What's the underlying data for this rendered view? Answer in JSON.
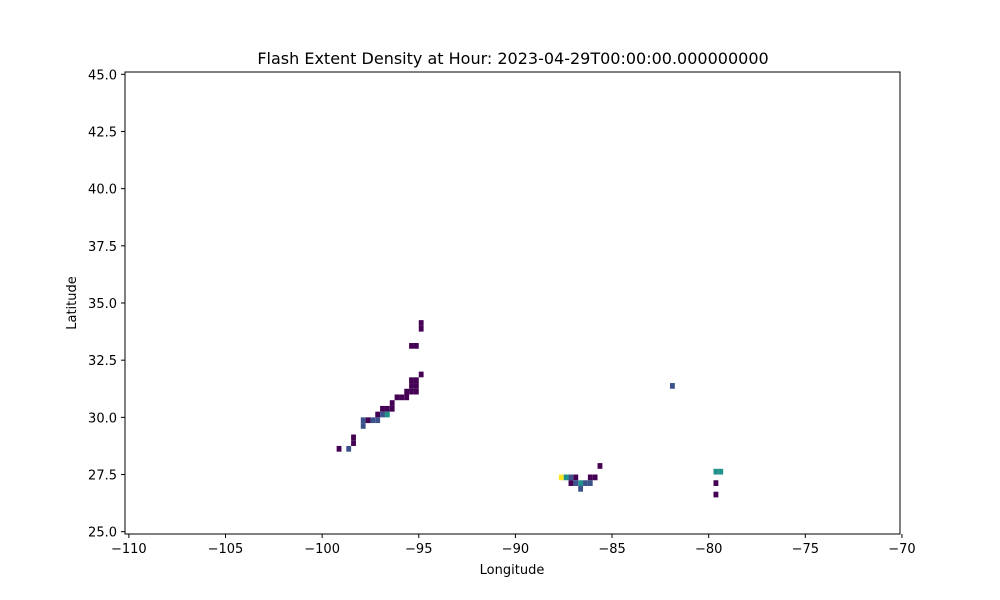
{
  "chart_data": {
    "type": "heatmap",
    "title": "Flash Extent Density at Hour: 2023-04-29T00:00:00.000000000",
    "xlabel": "Longitude",
    "ylabel": "Latitude",
    "xlim": [
      -110.2,
      -70.1
    ],
    "ylim": [
      24.9,
      45.1
    ],
    "xticks": [
      -110,
      -105,
      -100,
      -95,
      -90,
      -85,
      -80,
      -75,
      -70
    ],
    "yticks": [
      25.0,
      27.5,
      30.0,
      32.5,
      35.0,
      37.5,
      40.0,
      42.5,
      45.0
    ],
    "xtick_labels": [
      "−110",
      "−105",
      "−100",
      "−95",
      "−90",
      "−85",
      "−80",
      "−75",
      "−70"
    ],
    "ytick_labels": [
      "25.0",
      "27.5",
      "30.0",
      "32.5",
      "35.0",
      "37.5",
      "40.0",
      "42.5",
      "45.0"
    ],
    "grid": false,
    "colormap": "viridis",
    "colors": {
      "low": "#440154",
      "mid_low": "#3b528b",
      "mid": "#21918c",
      "high": "#fde725"
    },
    "cell_size": [
      0.25,
      0.25
    ],
    "cells": [
      {
        "lon": -95.0,
        "lat": 33.75,
        "level": "low"
      },
      {
        "lon": -95.0,
        "lat": 34.0,
        "level": "low"
      },
      {
        "lon": -95.5,
        "lat": 33.0,
        "level": "low"
      },
      {
        "lon": -95.25,
        "lat": 33.0,
        "level": "low"
      },
      {
        "lon": -95.0,
        "lat": 31.75,
        "level": "low"
      },
      {
        "lon": -95.5,
        "lat": 31.5,
        "level": "low"
      },
      {
        "lon": -95.25,
        "lat": 31.5,
        "level": "low"
      },
      {
        "lon": -95.5,
        "lat": 31.25,
        "level": "low"
      },
      {
        "lon": -95.25,
        "lat": 31.25,
        "level": "low"
      },
      {
        "lon": -95.75,
        "lat": 31.0,
        "level": "low"
      },
      {
        "lon": -95.5,
        "lat": 31.0,
        "level": "low"
      },
      {
        "lon": -95.25,
        "lat": 31.0,
        "level": "low"
      },
      {
        "lon": -96.25,
        "lat": 30.75,
        "level": "low"
      },
      {
        "lon": -96.0,
        "lat": 30.75,
        "level": "low"
      },
      {
        "lon": -95.75,
        "lat": 30.75,
        "level": "low"
      },
      {
        "lon": -96.5,
        "lat": 30.5,
        "level": "low"
      },
      {
        "lon": -97.0,
        "lat": 30.25,
        "level": "low"
      },
      {
        "lon": -96.75,
        "lat": 30.25,
        "level": "low"
      },
      {
        "lon": -96.5,
        "lat": 30.25,
        "level": "low"
      },
      {
        "lon": -97.25,
        "lat": 30.0,
        "level": "low"
      },
      {
        "lon": -97.0,
        "lat": 30.0,
        "level": "mid_low"
      },
      {
        "lon": -96.75,
        "lat": 30.0,
        "level": "mid"
      },
      {
        "lon": -98.0,
        "lat": 29.75,
        "level": "mid_low"
      },
      {
        "lon": -97.75,
        "lat": 29.75,
        "level": "low"
      },
      {
        "lon": -97.5,
        "lat": 29.75,
        "level": "mid_low"
      },
      {
        "lon": -97.25,
        "lat": 29.75,
        "level": "mid_low"
      },
      {
        "lon": -98.0,
        "lat": 29.5,
        "level": "mid_low"
      },
      {
        "lon": -98.5,
        "lat": 29.0,
        "level": "low"
      },
      {
        "lon": -98.5,
        "lat": 28.75,
        "level": "low"
      },
      {
        "lon": -99.25,
        "lat": 28.5,
        "level": "low"
      },
      {
        "lon": -98.75,
        "lat": 28.5,
        "level": "mid_low"
      },
      {
        "lon": -85.75,
        "lat": 27.75,
        "level": "low"
      },
      {
        "lon": -87.75,
        "lat": 27.25,
        "level": "high"
      },
      {
        "lon": -87.5,
        "lat": 27.25,
        "level": "mid"
      },
      {
        "lon": -87.25,
        "lat": 27.25,
        "level": "mid_low"
      },
      {
        "lon": -87.0,
        "lat": 27.25,
        "level": "low"
      },
      {
        "lon": -86.25,
        "lat": 27.25,
        "level": "low"
      },
      {
        "lon": -86.0,
        "lat": 27.25,
        "level": "low"
      },
      {
        "lon": -87.25,
        "lat": 27.0,
        "level": "low"
      },
      {
        "lon": -87.0,
        "lat": 27.0,
        "level": "mid_low"
      },
      {
        "lon": -86.75,
        "lat": 27.0,
        "level": "mid"
      },
      {
        "lon": -86.5,
        "lat": 27.0,
        "level": "mid_low"
      },
      {
        "lon": -86.25,
        "lat": 27.0,
        "level": "mid_low"
      },
      {
        "lon": -86.75,
        "lat": 26.75,
        "level": "mid_low"
      },
      {
        "lon": -82.0,
        "lat": 31.25,
        "level": "mid_low"
      },
      {
        "lon": -79.75,
        "lat": 27.5,
        "level": "mid"
      },
      {
        "lon": -79.5,
        "lat": 27.5,
        "level": "mid"
      },
      {
        "lon": -79.75,
        "lat": 27.0,
        "level": "low"
      },
      {
        "lon": -79.75,
        "lat": 26.5,
        "level": "low"
      }
    ]
  }
}
